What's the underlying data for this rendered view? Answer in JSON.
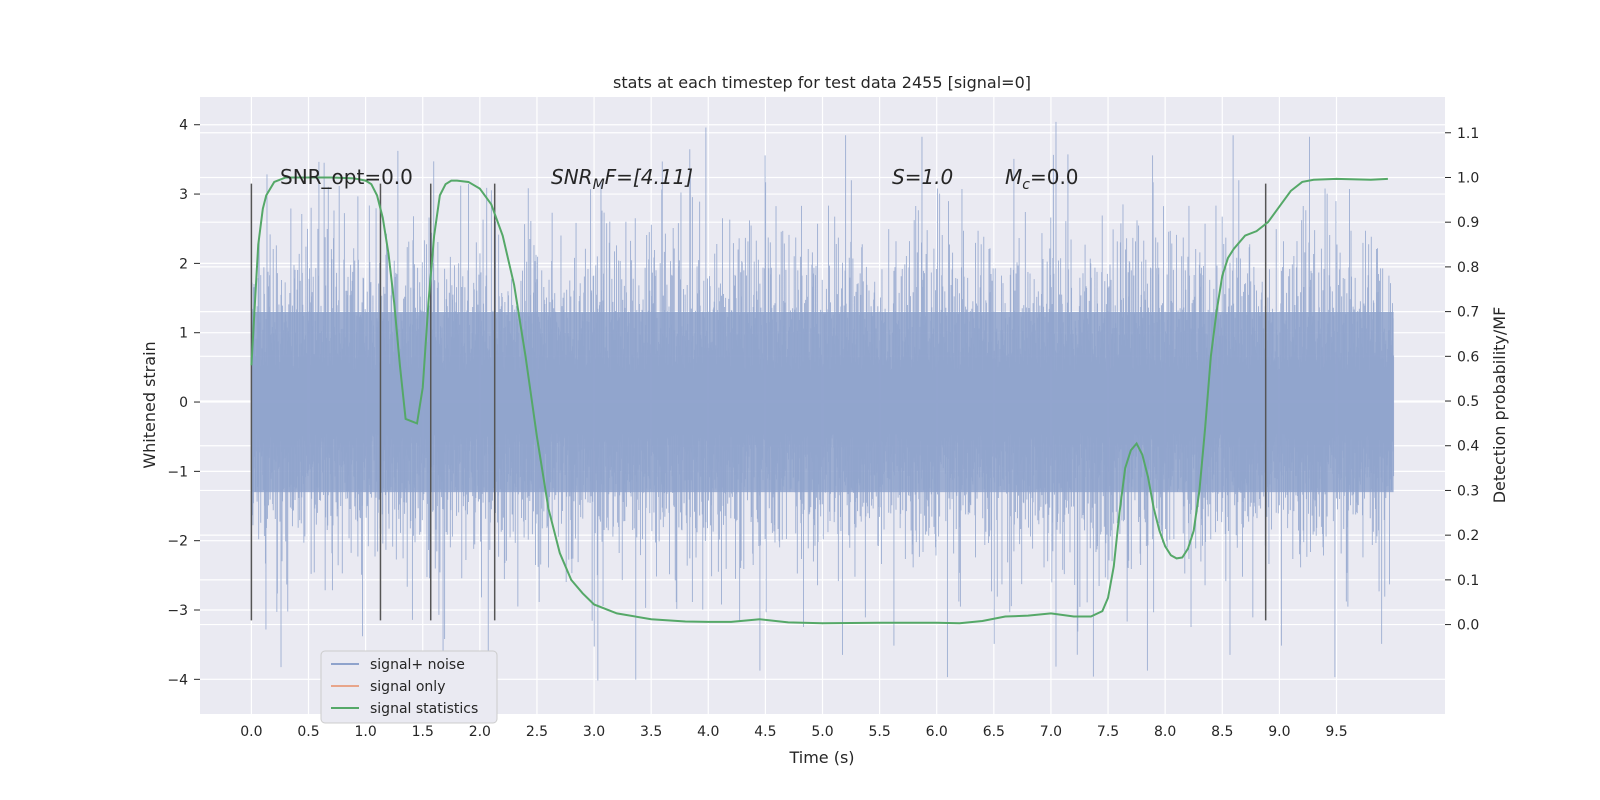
{
  "chart_data": {
    "type": "line",
    "title": "stats at each timestep for test data 2455 [signal=0]",
    "xlabel": "Time (s)",
    "ylabel_left": "Whitened strain",
    "ylabel_right": "Detection probability/MF",
    "xlim": [
      -0.45,
      10.45
    ],
    "ylim_left": [
      -4.5,
      4.4
    ],
    "ylim_right": [
      -0.2,
      1.18
    ],
    "x_ticks": [
      "0.0",
      "0.5",
      "1.0",
      "1.5",
      "2.0",
      "2.5",
      "3.0",
      "3.5",
      "4.0",
      "4.5",
      "5.0",
      "5.5",
      "6.0",
      "6.5",
      "7.0",
      "7.5",
      "8.0",
      "8.5",
      "9.0",
      "9.5"
    ],
    "y_left_ticks": [
      4,
      3,
      2,
      1,
      0,
      -1,
      -2,
      -3,
      -4
    ],
    "y_left_tick_labels": [
      "4",
      "3",
      "2",
      "1",
      "0",
      "−1",
      "−2",
      "−3",
      "−4"
    ],
    "y_right_ticks": [
      "1.1",
      "1.0",
      "0.9",
      "0.8",
      "0.7",
      "0.6",
      "0.5",
      "0.4",
      "0.3",
      "0.2",
      "0.1",
      "0.0"
    ],
    "grid": true,
    "legend_position": "lower-left",
    "annotations": {
      "snr_opt": "SNR_opt=0.0",
      "snr_mf_main": "SNR",
      "snr_mf_sub": "M",
      "snr_mf_rest": "F=[4.11]",
      "s_val": "S=1.0",
      "mc_main": "M",
      "mc_sub": "c",
      "mc_rest": "=0.0"
    },
    "vertical_lines_x": [
      0.0,
      1.13,
      1.57,
      2.13,
      8.88
    ],
    "vertical_lines_range": [
      -3.15,
      3.15
    ],
    "series": [
      {
        "name": "signal+ noise",
        "color": "#8fa3cc",
        "x_range": [
          0.0,
          10.0
        ],
        "envelope": {
          "core_std": 1.3,
          "typical_peak": 2.8,
          "max": 4.05,
          "min": -4.05
        }
      },
      {
        "name": "signal only",
        "color": "#e8a58a",
        "values": []
      },
      {
        "name": "signal statistics",
        "color": "#55a868",
        "axis": "right",
        "x": [
          0.0,
          0.06,
          0.1,
          0.13,
          0.2,
          0.3,
          0.5,
          0.7,
          0.9,
          1.0,
          1.05,
          1.1,
          1.15,
          1.2,
          1.25,
          1.3,
          1.35,
          1.4,
          1.45,
          1.5,
          1.55,
          1.6,
          1.65,
          1.7,
          1.75,
          1.8,
          1.9,
          2.0,
          2.1,
          2.2,
          2.3,
          2.4,
          2.5,
          2.6,
          2.7,
          2.8,
          2.9,
          3.0,
          3.2,
          3.5,
          3.8,
          4.0,
          4.2,
          4.45,
          4.7,
          5.0,
          5.5,
          6.0,
          6.2,
          6.4,
          6.6,
          6.8,
          7.0,
          7.2,
          7.35,
          7.45,
          7.5,
          7.55,
          7.6,
          7.65,
          7.7,
          7.75,
          7.8,
          7.85,
          7.9,
          7.95,
          8.0,
          8.05,
          8.1,
          8.15,
          8.2,
          8.25,
          8.3,
          8.35,
          8.4,
          8.45,
          8.5,
          8.55,
          8.6,
          8.7,
          8.8,
          8.9,
          9.0,
          9.1,
          9.2,
          9.3,
          9.5,
          9.8,
          9.95
        ],
        "values": [
          0.58,
          0.85,
          0.93,
          0.96,
          0.99,
          1.0,
          1.0,
          1.0,
          0.998,
          0.993,
          0.985,
          0.96,
          0.91,
          0.83,
          0.72,
          0.58,
          0.46,
          0.455,
          0.45,
          0.53,
          0.72,
          0.87,
          0.96,
          0.985,
          0.993,
          0.993,
          0.99,
          0.975,
          0.94,
          0.87,
          0.76,
          0.6,
          0.42,
          0.26,
          0.16,
          0.1,
          0.07,
          0.045,
          0.025,
          0.012,
          0.007,
          0.006,
          0.006,
          0.012,
          0.005,
          0.003,
          0.004,
          0.004,
          0.003,
          0.008,
          0.018,
          0.02,
          0.025,
          0.018,
          0.018,
          0.03,
          0.06,
          0.13,
          0.25,
          0.35,
          0.39,
          0.405,
          0.38,
          0.33,
          0.26,
          0.21,
          0.175,
          0.155,
          0.148,
          0.15,
          0.17,
          0.21,
          0.3,
          0.44,
          0.6,
          0.7,
          0.78,
          0.82,
          0.84,
          0.87,
          0.88,
          0.9,
          0.935,
          0.97,
          0.99,
          0.995,
          0.997,
          0.995,
          0.997
        ]
      }
    ]
  }
}
